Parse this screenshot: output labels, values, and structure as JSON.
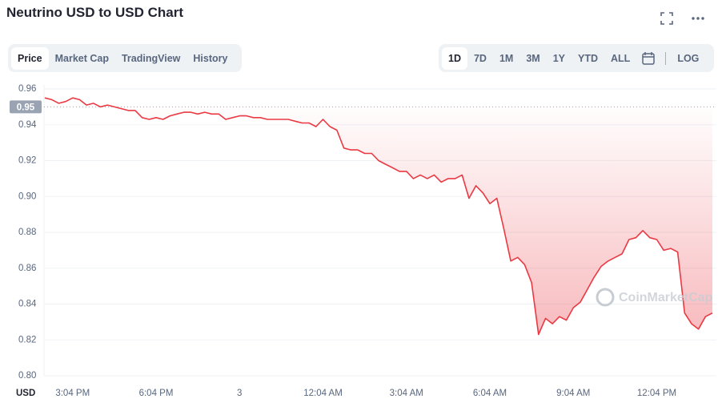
{
  "controls": {
    "tabs": [
      "Price",
      "Market Cap",
      "TradingView",
      "History"
    ],
    "ranges": [
      "1D",
      "7D",
      "1M",
      "3M",
      "1Y",
      "YTD",
      "ALL"
    ],
    "log": "LOG"
  },
  "chart_data": {
    "type": "line",
    "title": "Neutrino USD to USD Chart",
    "color": "#ea3943",
    "grid": true,
    "currency_label": "USD",
    "watermark": "CoinMarketCap",
    "reference_price": 0.95,
    "ylim": [
      0.8,
      0.96
    ],
    "yticks": [
      {
        "value": 0.8,
        "label": "0.80"
      },
      0.82,
      0.84,
      0.86,
      0.88,
      {
        "value": 0.9,
        "label": "0.90"
      },
      0.92,
      0.94,
      0.96
    ],
    "categories": [
      null,
      null,
      null,
      null,
      "3:04 PM",
      null,
      null,
      null,
      null,
      null,
      null,
      null,
      null,
      null,
      null,
      null,
      "6:04 PM",
      null,
      null,
      null,
      null,
      null,
      null,
      null,
      null,
      null,
      null,
      null,
      "3",
      null,
      null,
      null,
      null,
      null,
      null,
      null,
      null,
      null,
      null,
      null,
      "12:04 AM",
      null,
      null,
      null,
      null,
      null,
      null,
      null,
      null,
      null,
      null,
      null,
      "3:04 AM",
      null,
      null,
      null,
      null,
      null,
      null,
      null,
      null,
      null,
      null,
      null,
      "6:04 AM",
      null,
      null,
      null,
      null,
      null,
      null,
      null,
      null,
      null,
      null,
      null,
      "9:04 AM",
      null,
      null,
      null,
      null,
      null,
      null,
      null,
      null,
      null,
      null,
      null,
      "12:04 PM",
      null,
      null,
      null,
      null,
      null,
      null,
      null,
      null
    ],
    "values": [
      0.955,
      0.954,
      0.952,
      0.953,
      0.955,
      0.954,
      0.951,
      0.952,
      0.95,
      0.951,
      0.95,
      0.949,
      0.948,
      0.948,
      0.944,
      0.943,
      0.944,
      0.943,
      0.945,
      0.946,
      0.947,
      0.947,
      0.946,
      0.947,
      0.946,
      0.946,
      0.943,
      0.944,
      0.945,
      0.945,
      0.944,
      0.944,
      0.943,
      0.943,
      0.943,
      0.943,
      0.942,
      0.941,
      0.941,
      0.939,
      0.943,
      0.939,
      0.937,
      0.927,
      0.926,
      0.926,
      0.924,
      0.924,
      0.92,
      0.918,
      0.916,
      0.914,
      0.914,
      0.91,
      0.912,
      0.91,
      0.912,
      0.908,
      0.91,
      0.91,
      0.912,
      0.899,
      0.906,
      0.902,
      0.896,
      0.899,
      0.882,
      0.864,
      0.866,
      0.862,
      0.852,
      0.823,
      0.832,
      0.829,
      0.833,
      0.831,
      0.838,
      0.841,
      0.848,
      0.855,
      0.861,
      0.864,
      0.866,
      0.868,
      0.876,
      0.877,
      0.881,
      0.877,
      0.876,
      0.87,
      0.871,
      0.869,
      0.835,
      0.829,
      0.826,
      0.833,
      0.835
    ]
  }
}
